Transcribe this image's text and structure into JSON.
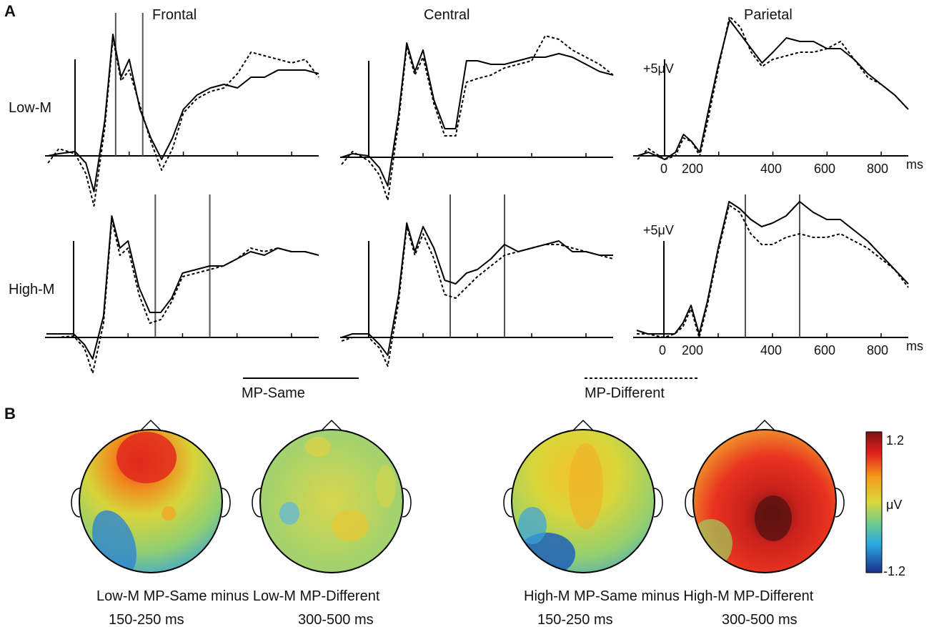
{
  "panel_a": {
    "label": "A",
    "regions": [
      "Frontal",
      "Central",
      "Parietal"
    ],
    "rows": [
      "Low-M",
      "High-M"
    ],
    "x_ticks": [
      "0",
      "200",
      "400",
      "600",
      "800"
    ],
    "x_unit": "ms",
    "amplitude_scale": "+5μV",
    "legend": [
      {
        "label": "MP-Same",
        "style": "solid"
      },
      {
        "label": "MP-Different",
        "style": "dashed"
      }
    ]
  },
  "panel_b": {
    "label": "B",
    "groups": [
      {
        "caption": "Low-M MP-Same minus Low-M MP-Different",
        "windows": [
          "150-250 ms",
          "300-500 ms"
        ]
      },
      {
        "caption": "High-M MP-Same minus High-M MP-Different",
        "windows": [
          "150-250 ms",
          "300-500 ms"
        ]
      }
    ],
    "colorbar": {
      "max": "1.2",
      "mid": "μV",
      "min": "-1.2"
    }
  },
  "chart_data": [
    {
      "type": "line",
      "panel": "Low-M Frontal",
      "xlim": [
        -100,
        900
      ],
      "window_markers": [
        150,
        250
      ],
      "x": [
        -100,
        -60,
        0,
        40,
        70,
        110,
        140,
        170,
        200,
        240,
        280,
        320,
        360,
        400,
        450,
        500,
        550,
        600,
        650,
        700,
        750,
        800,
        850,
        900
      ],
      "series": [
        {
          "name": "MP-Same",
          "values": [
            0,
            0.3,
            0.6,
            -1.0,
            -5.0,
            5.0,
            17.0,
            11.0,
            13.5,
            6.5,
            2.5,
            -0.5,
            2.5,
            6.5,
            8.5,
            9.5,
            10.0,
            9.5,
            11.0,
            11.0,
            12.0,
            12.0,
            12.0,
            11.5
          ]
        },
        {
          "name": "MP-Different",
          "values": [
            -1.0,
            1.0,
            0.3,
            -2.5,
            -7.0,
            4.0,
            16.5,
            10.5,
            12.0,
            7.0,
            2.0,
            -2.0,
            1.0,
            6.0,
            8.0,
            9.0,
            9.5,
            11.5,
            14.5,
            14.0,
            13.5,
            13.0,
            13.5,
            11.0
          ]
        }
      ]
    },
    {
      "type": "line",
      "panel": "Low-M Central",
      "xlim": [
        -100,
        900
      ],
      "x": [
        -100,
        -60,
        0,
        40,
        70,
        110,
        140,
        170,
        200,
        240,
        280,
        320,
        360,
        400,
        450,
        500,
        550,
        600,
        650,
        700,
        750,
        800,
        850,
        900
      ],
      "series": [
        {
          "name": "MP-Same",
          "values": [
            0,
            0.5,
            0.2,
            -1.5,
            -4.0,
            6.0,
            16.0,
            12.0,
            15.0,
            8.0,
            4.0,
            4.0,
            13.5,
            13.5,
            13.0,
            13.0,
            13.5,
            14.0,
            14.0,
            14.5,
            14.0,
            13.0,
            12.0,
            11.5
          ]
        },
        {
          "name": "MP-Different",
          "values": [
            -1.0,
            0.8,
            -0.5,
            -2.5,
            -6.0,
            5.0,
            15.5,
            11.5,
            14.0,
            7.5,
            3.0,
            3.0,
            10.5,
            11.0,
            11.5,
            12.5,
            13.0,
            13.5,
            17.0,
            16.5,
            15.0,
            14.0,
            13.0,
            11.5
          ]
        }
      ]
    },
    {
      "type": "line",
      "panel": "Low-M Parietal",
      "xlim": [
        -100,
        900
      ],
      "window_markers": [],
      "x": [
        -100,
        -60,
        0,
        40,
        70,
        100,
        130,
        160,
        200,
        240,
        280,
        320,
        360,
        400,
        450,
        500,
        550,
        600,
        650,
        700,
        750,
        800,
        850,
        900
      ],
      "series": [
        {
          "name": "MP-Same",
          "values": [
            0,
            0.5,
            -0.5,
            0.5,
            3.0,
            2.0,
            0.5,
            6.0,
            13.0,
            19.0,
            17.0,
            15.0,
            13.0,
            14.5,
            16.5,
            16.0,
            16.0,
            15.0,
            15.0,
            13.5,
            11.5,
            10.0,
            8.5,
            6.5
          ]
        },
        {
          "name": "MP-Different",
          "values": [
            -0.5,
            1.0,
            -0.5,
            0.0,
            2.5,
            2.0,
            0.0,
            5.0,
            12.5,
            19.5,
            18.0,
            14.5,
            12.5,
            13.5,
            14.0,
            14.5,
            14.5,
            15.0,
            16.0,
            13.5,
            11.0,
            10.0,
            8.5,
            6.5
          ]
        }
      ]
    },
    {
      "type": "line",
      "panel": "High-M Frontal",
      "xlim": [
        -100,
        900
      ],
      "window_markers": [
        300,
        500
      ],
      "x": [
        -100,
        -60,
        0,
        40,
        70,
        110,
        140,
        170,
        200,
        240,
        280,
        320,
        360,
        400,
        450,
        500,
        550,
        600,
        650,
        700,
        750,
        800,
        850,
        900
      ],
      "series": [
        {
          "name": "MP-Same",
          "values": [
            0.5,
            0.5,
            0.5,
            -1.0,
            -3.0,
            3.0,
            17.0,
            12.5,
            13.5,
            7.0,
            3.5,
            3.5,
            5.5,
            9.0,
            9.5,
            10.0,
            10.0,
            11.0,
            12.0,
            11.5,
            12.5,
            12.0,
            12.0,
            11.5
          ]
        },
        {
          "name": "MP-Different",
          "values": [
            0.0,
            0.0,
            0.2,
            -1.5,
            -5.0,
            2.0,
            16.5,
            11.5,
            12.5,
            6.0,
            2.0,
            2.5,
            5.0,
            8.5,
            9.0,
            9.5,
            10.0,
            11.0,
            12.5,
            12.0,
            12.5,
            12.0,
            12.0,
            11.5
          ]
        }
      ]
    },
    {
      "type": "line",
      "panel": "High-M Central",
      "xlim": [
        -100,
        900
      ],
      "window_markers": [
        300,
        500
      ],
      "x": [
        -100,
        -60,
        0,
        40,
        70,
        110,
        140,
        170,
        200,
        240,
        280,
        320,
        360,
        400,
        450,
        500,
        550,
        600,
        650,
        700,
        750,
        800,
        850,
        900
      ],
      "series": [
        {
          "name": "MP-Same",
          "values": [
            0.0,
            0.5,
            0.5,
            -1.0,
            -2.5,
            6.0,
            16.0,
            12.0,
            15.5,
            12.5,
            8.0,
            7.5,
            9.0,
            9.5,
            11.0,
            13.0,
            12.0,
            12.5,
            13.0,
            13.5,
            12.0,
            12.0,
            11.5,
            11.5
          ]
        },
        {
          "name": "MP-Different",
          "values": [
            -0.5,
            0.0,
            0.0,
            -1.5,
            -4.0,
            5.0,
            15.5,
            11.5,
            14.5,
            11.0,
            6.0,
            5.5,
            7.0,
            8.5,
            10.0,
            11.5,
            12.0,
            12.5,
            13.0,
            13.0,
            12.5,
            12.0,
            11.5,
            11.0
          ]
        }
      ]
    },
    {
      "type": "line",
      "panel": "High-M Parietal",
      "xlim": [
        -100,
        900
      ],
      "window_markers": [
        300,
        500
      ],
      "x": [
        -100,
        -60,
        0,
        40,
        70,
        100,
        130,
        160,
        200,
        240,
        280,
        320,
        360,
        400,
        450,
        500,
        550,
        600,
        650,
        700,
        750,
        800,
        850,
        900
      ],
      "series": [
        {
          "name": "MP-Same",
          "values": [
            1.0,
            0.5,
            0.5,
            0.5,
            2.0,
            4.5,
            0.5,
            5.0,
            12.5,
            19.0,
            18.0,
            16.5,
            15.5,
            16.0,
            17.0,
            19.0,
            17.5,
            16.5,
            16.5,
            15.0,
            13.5,
            11.5,
            9.5,
            7.5
          ]
        },
        {
          "name": "MP-Different",
          "values": [
            0.5,
            0.5,
            0.0,
            0.5,
            1.5,
            4.0,
            0.0,
            4.5,
            12.0,
            18.5,
            17.5,
            14.5,
            13.0,
            13.0,
            14.0,
            14.5,
            14.0,
            14.0,
            14.5,
            13.5,
            12.5,
            11.0,
            9.5,
            7.0
          ]
        }
      ]
    }
  ]
}
